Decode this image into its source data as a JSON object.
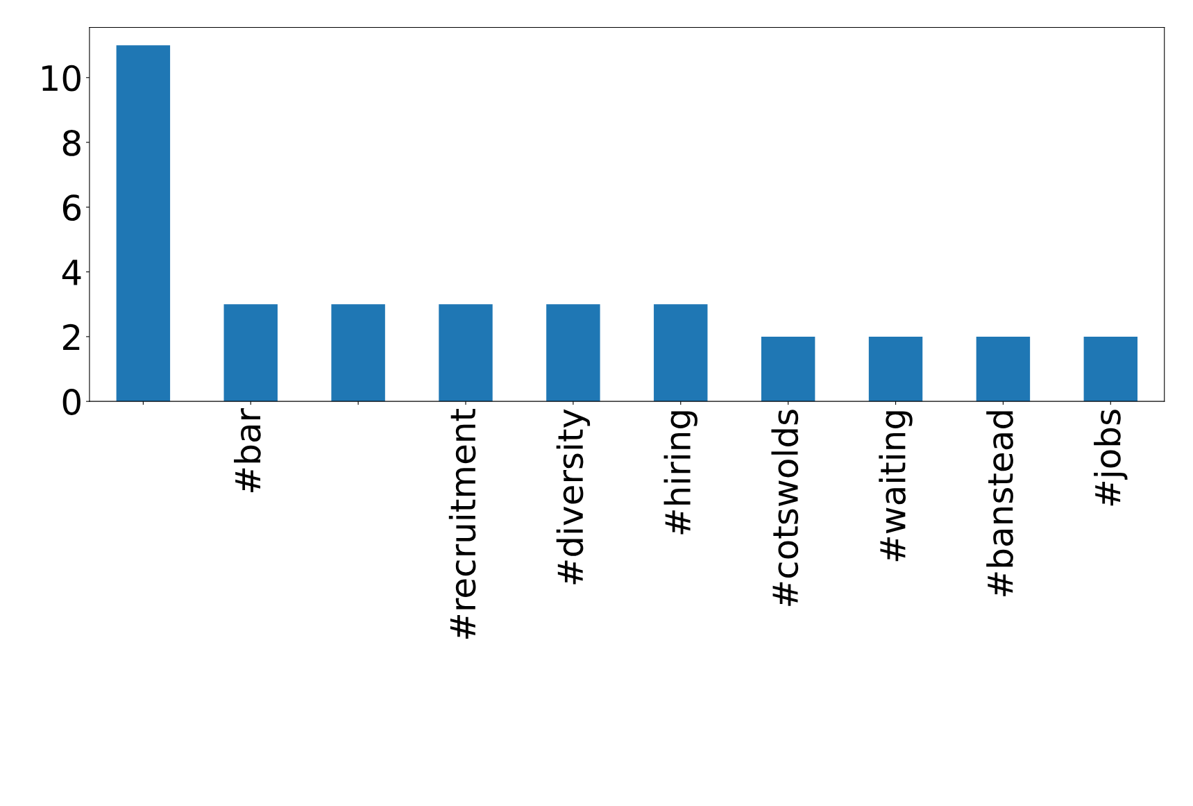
{
  "chart_data": {
    "type": "bar",
    "categories": [
      null,
      "#bar",
      null,
      "#recruitment",
      "#diversity",
      "#hiring",
      "#cotswolds",
      "#waiting",
      "#banstead",
      "#jobs"
    ],
    "values": [
      11,
      3,
      3,
      3,
      3,
      3,
      2,
      2,
      2,
      2
    ],
    "color": "#1f77b4",
    "ylim": [
      0,
      11.55
    ],
    "yticks": [
      0,
      2,
      4,
      6,
      8,
      10
    ],
    "grid": false,
    "legend": false
  }
}
